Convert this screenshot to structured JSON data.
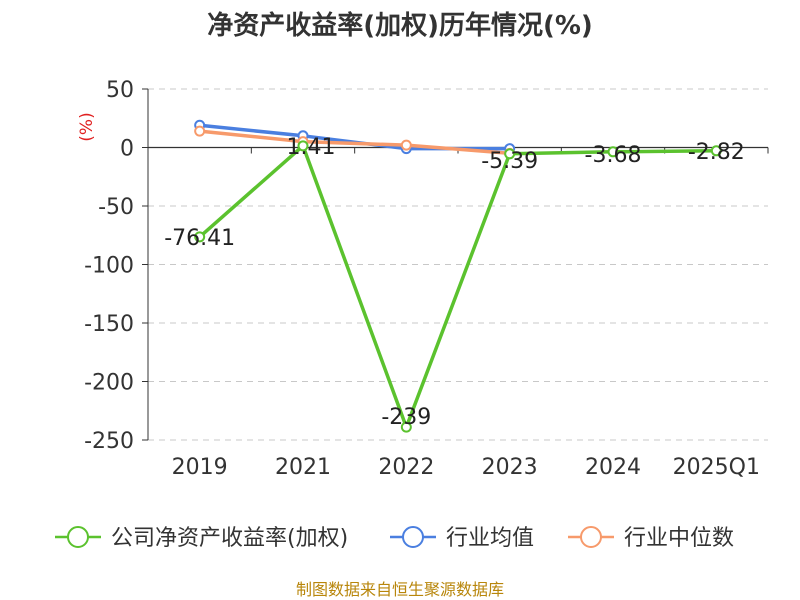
{
  "chart_data": {
    "type": "line",
    "title": "净资产收益率(加权)历年情况(%)",
    "ylabel": "(%)",
    "categories": [
      "2019",
      "2021",
      "2022",
      "2023",
      "2024",
      "2025Q1"
    ],
    "ylim": [
      -250,
      50
    ],
    "yticks": [
      50,
      0,
      -50,
      -100,
      -150,
      -200,
      -250
    ],
    "grid": true,
    "legend_position": "bottom",
    "series": [
      {
        "name": "公司净资产收益率(加权)",
        "color": "#5bc22e",
        "values": [
          -76.41,
          1.41,
          -239,
          -5.39,
          -3.68,
          -2.82
        ],
        "labels": [
          "-76.41",
          "1.41",
          "-239",
          "-5.39",
          "-3.68",
          "-2.82"
        ],
        "markers": true
      },
      {
        "name": "行业均值",
        "color": "#4a7fe0",
        "values": [
          19,
          10,
          -1,
          -1,
          null,
          null
        ],
        "markers": true
      },
      {
        "name": "行业中位数",
        "color": "#f79a6b",
        "values": [
          14,
          5,
          2,
          -5,
          null,
          null
        ],
        "markers": true
      }
    ]
  },
  "footer": {
    "source": "制图数据来自恒生聚源数据库"
  }
}
